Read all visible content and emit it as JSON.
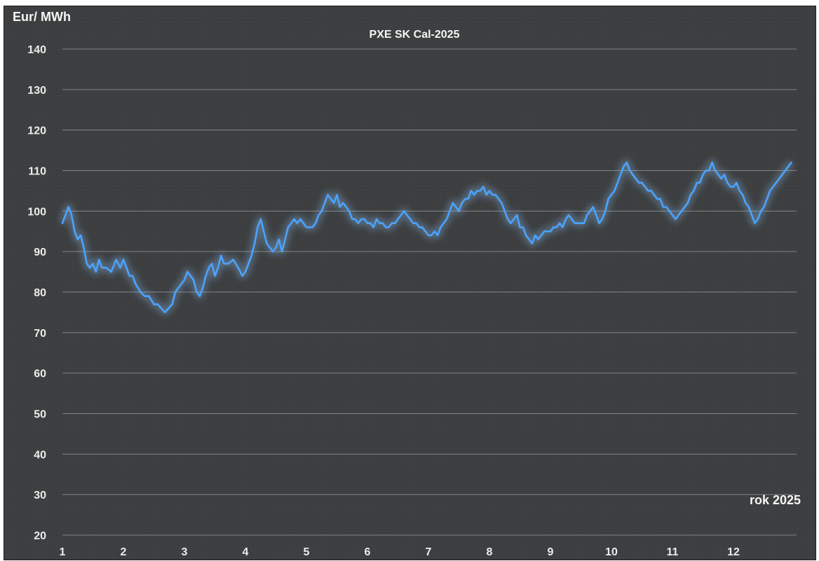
{
  "chart_data": {
    "type": "line",
    "title": "PXE SK Cal-2025",
    "ylabel": "Eur/ MWh",
    "xlabel": "rok 2025",
    "ylim": [
      20,
      140
    ],
    "xlim": [
      1,
      13
    ],
    "yticks": [
      "140",
      "130",
      "120",
      "110",
      "100",
      "90",
      "80",
      "70",
      "60",
      "50",
      "40",
      "30",
      "20"
    ],
    "xticks": [
      "1",
      "2",
      "3",
      "4",
      "5",
      "6",
      "7",
      "8",
      "9",
      "10",
      "11",
      "12"
    ],
    "grid": true,
    "legend": "none",
    "colors": {
      "line": "#4aa3ff",
      "glow": "#8fc6ff",
      "grid": "#9a9c9d",
      "background": "#3b3d3e"
    },
    "series": [
      {
        "values": [
          [
            1.0,
            97
          ],
          [
            1.05,
            99
          ],
          [
            1.1,
            101
          ],
          [
            1.15,
            99
          ],
          [
            1.2,
            95
          ],
          [
            1.25,
            93
          ],
          [
            1.3,
            94
          ],
          [
            1.35,
            91
          ],
          [
            1.4,
            87
          ],
          [
            1.45,
            86
          ],
          [
            1.5,
            87
          ],
          [
            1.55,
            85
          ],
          [
            1.6,
            88
          ],
          [
            1.65,
            86
          ],
          [
            1.72,
            86
          ],
          [
            1.8,
            85
          ],
          [
            1.88,
            88
          ],
          [
            1.95,
            86
          ],
          [
            2.0,
            88
          ],
          [
            2.05,
            86
          ],
          [
            2.1,
            84
          ],
          [
            2.15,
            84
          ],
          [
            2.2,
            82
          ],
          [
            2.28,
            80
          ],
          [
            2.35,
            79
          ],
          [
            2.42,
            79
          ],
          [
            2.5,
            77
          ],
          [
            2.56,
            77
          ],
          [
            2.62,
            76
          ],
          [
            2.68,
            75
          ],
          [
            2.74,
            76
          ],
          [
            2.8,
            77
          ],
          [
            2.85,
            80
          ],
          [
            2.9,
            81
          ],
          [
            2.95,
            82
          ],
          [
            3.0,
            83
          ],
          [
            3.05,
            85
          ],
          [
            3.1,
            84
          ],
          [
            3.15,
            83
          ],
          [
            3.2,
            80
          ],
          [
            3.25,
            79
          ],
          [
            3.3,
            81
          ],
          [
            3.35,
            84
          ],
          [
            3.4,
            86
          ],
          [
            3.45,
            87
          ],
          [
            3.5,
            84
          ],
          [
            3.55,
            86
          ],
          [
            3.6,
            89
          ],
          [
            3.65,
            87
          ],
          [
            3.72,
            87
          ],
          [
            3.8,
            88
          ],
          [
            3.88,
            86
          ],
          [
            3.95,
            84
          ],
          [
            4.0,
            85
          ],
          [
            4.05,
            87
          ],
          [
            4.1,
            89
          ],
          [
            4.15,
            92
          ],
          [
            4.2,
            96
          ],
          [
            4.25,
            98
          ],
          [
            4.3,
            95
          ],
          [
            4.35,
            92
          ],
          [
            4.4,
            91
          ],
          [
            4.45,
            90
          ],
          [
            4.5,
            91
          ],
          [
            4.55,
            93
          ],
          [
            4.6,
            90
          ],
          [
            4.65,
            93
          ],
          [
            4.7,
            96
          ],
          [
            4.75,
            97
          ],
          [
            4.8,
            98
          ],
          [
            4.85,
            97
          ],
          [
            4.9,
            98
          ],
          [
            4.95,
            97
          ],
          [
            5.0,
            96
          ],
          [
            5.05,
            96
          ],
          [
            5.1,
            96
          ],
          [
            5.15,
            97
          ],
          [
            5.2,
            99
          ],
          [
            5.25,
            100
          ],
          [
            5.3,
            102
          ],
          [
            5.35,
            104
          ],
          [
            5.4,
            103
          ],
          [
            5.45,
            102
          ],
          [
            5.5,
            104
          ],
          [
            5.55,
            101
          ],
          [
            5.6,
            102
          ],
          [
            5.65,
            101
          ],
          [
            5.7,
            100
          ],
          [
            5.75,
            98
          ],
          [
            5.8,
            98
          ],
          [
            5.85,
            97
          ],
          [
            5.9,
            98
          ],
          [
            5.95,
            98
          ],
          [
            6.0,
            97
          ],
          [
            6.05,
            97
          ],
          [
            6.1,
            96
          ],
          [
            6.15,
            98
          ],
          [
            6.2,
            97
          ],
          [
            6.25,
            97
          ],
          [
            6.3,
            96
          ],
          [
            6.35,
            96
          ],
          [
            6.4,
            97
          ],
          [
            6.45,
            97
          ],
          [
            6.5,
            98
          ],
          [
            6.55,
            99
          ],
          [
            6.6,
            100
          ],
          [
            6.65,
            99
          ],
          [
            6.7,
            98
          ],
          [
            6.75,
            97
          ],
          [
            6.8,
            97
          ],
          [
            6.85,
            96
          ],
          [
            6.9,
            96
          ],
          [
            6.95,
            95
          ],
          [
            7.0,
            94
          ],
          [
            7.05,
            94
          ],
          [
            7.1,
            95
          ],
          [
            7.15,
            94
          ],
          [
            7.2,
            96
          ],
          [
            7.25,
            97
          ],
          [
            7.3,
            98
          ],
          [
            7.35,
            100
          ],
          [
            7.4,
            102
          ],
          [
            7.45,
            101
          ],
          [
            7.5,
            100
          ],
          [
            7.55,
            102
          ],
          [
            7.6,
            103
          ],
          [
            7.65,
            103
          ],
          [
            7.7,
            105
          ],
          [
            7.75,
            104
          ],
          [
            7.8,
            105
          ],
          [
            7.85,
            105
          ],
          [
            7.9,
            106
          ],
          [
            7.95,
            104
          ],
          [
            8.0,
            105
          ],
          [
            8.05,
            104
          ],
          [
            8.1,
            104
          ],
          [
            8.15,
            103
          ],
          [
            8.2,
            102
          ],
          [
            8.25,
            100
          ],
          [
            8.3,
            98
          ],
          [
            8.35,
            97
          ],
          [
            8.4,
            98
          ],
          [
            8.45,
            99
          ],
          [
            8.5,
            96
          ],
          [
            8.55,
            96
          ],
          [
            8.6,
            94
          ],
          [
            8.65,
            93
          ],
          [
            8.7,
            92
          ],
          [
            8.75,
            94
          ],
          [
            8.8,
            93
          ],
          [
            8.85,
            94
          ],
          [
            8.9,
            95
          ],
          [
            8.95,
            95
          ],
          [
            9.0,
            95
          ],
          [
            9.05,
            96
          ],
          [
            9.1,
            96
          ],
          [
            9.15,
            97
          ],
          [
            9.2,
            96
          ],
          [
            9.25,
            98
          ],
          [
            9.3,
            99
          ],
          [
            9.35,
            98
          ],
          [
            9.4,
            97
          ],
          [
            9.45,
            97
          ],
          [
            9.5,
            97
          ],
          [
            9.55,
            97
          ],
          [
            9.6,
            99
          ],
          [
            9.65,
            100
          ],
          [
            9.7,
            101
          ],
          [
            9.75,
            99
          ],
          [
            9.8,
            97
          ],
          [
            9.85,
            98
          ],
          [
            9.9,
            100
          ],
          [
            9.95,
            103
          ],
          [
            10.0,
            104
          ],
          [
            10.05,
            105
          ],
          [
            10.1,
            107
          ],
          [
            10.15,
            109
          ],
          [
            10.2,
            111
          ],
          [
            10.25,
            112
          ],
          [
            10.3,
            110
          ],
          [
            10.35,
            109
          ],
          [
            10.4,
            108
          ],
          [
            10.45,
            107
          ],
          [
            10.5,
            107
          ],
          [
            10.55,
            106
          ],
          [
            10.6,
            105
          ],
          [
            10.65,
            105
          ],
          [
            10.7,
            104
          ],
          [
            10.75,
            103
          ],
          [
            10.8,
            103
          ],
          [
            10.85,
            101
          ],
          [
            10.9,
            101
          ],
          [
            10.95,
            100
          ],
          [
            11.0,
            99
          ],
          [
            11.05,
            98
          ],
          [
            11.1,
            99
          ],
          [
            11.15,
            100
          ],
          [
            11.2,
            101
          ],
          [
            11.25,
            102
          ],
          [
            11.3,
            104
          ],
          [
            11.35,
            105
          ],
          [
            11.4,
            107
          ],
          [
            11.45,
            107
          ],
          [
            11.5,
            109
          ],
          [
            11.55,
            110
          ],
          [
            11.6,
            110
          ],
          [
            11.65,
            112
          ],
          [
            11.7,
            110
          ],
          [
            11.75,
            109
          ],
          [
            11.8,
            108
          ],
          [
            11.85,
            109
          ],
          [
            11.9,
            107
          ],
          [
            11.95,
            106
          ],
          [
            12.0,
            106
          ],
          [
            12.05,
            107
          ],
          [
            12.1,
            105
          ],
          [
            12.15,
            104
          ],
          [
            12.2,
            102
          ],
          [
            12.25,
            101
          ],
          [
            12.3,
            99
          ],
          [
            12.35,
            97
          ],
          [
            12.4,
            98
          ],
          [
            12.45,
            100
          ],
          [
            12.5,
            101
          ],
          [
            12.55,
            103
          ],
          [
            12.6,
            105
          ],
          [
            12.65,
            106
          ],
          [
            12.7,
            107
          ],
          [
            12.75,
            108
          ],
          [
            12.8,
            109
          ],
          [
            12.85,
            110
          ],
          [
            12.9,
            111
          ],
          [
            12.95,
            112
          ]
        ]
      }
    ]
  }
}
